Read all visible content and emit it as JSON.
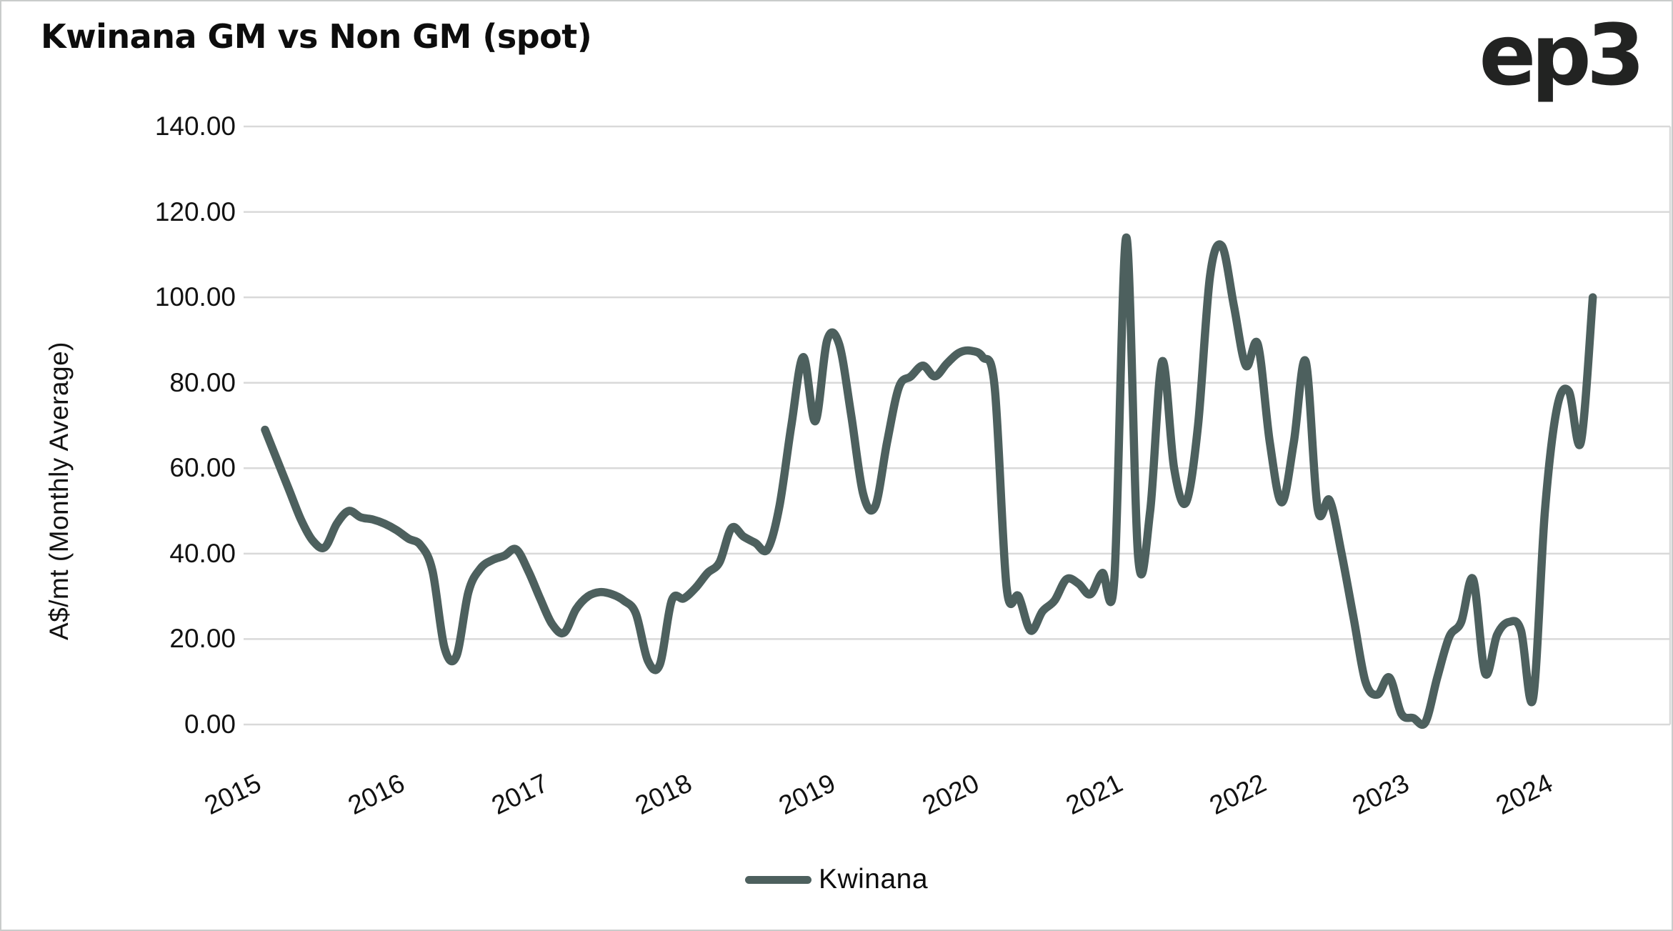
{
  "header": {
    "title": "Kwinana GM vs Non GM (spot)",
    "logo": "ep3"
  },
  "legend": {
    "label": "Kwinana",
    "swatch_color": "#4d605e"
  },
  "colors": {
    "line": "#4d605e",
    "grid": "#d9d9d9",
    "text": "#121212",
    "background": "#ffffff",
    "border": "#c9cccb"
  },
  "chart_data": {
    "type": "line",
    "title": "Kwinana GM vs Non GM (spot)",
    "xlabel": "",
    "ylabel": "A$/mt (Monthly Average)",
    "ylim": [
      0,
      140
    ],
    "grid": "horizontal-only",
    "legend_position": "bottom-center",
    "y_ticks": [
      "140.00",
      "120.00",
      "100.00",
      "80.00",
      "60.00",
      "40.00",
      "20.00",
      "0.00"
    ],
    "y_tick_values": [
      140,
      120,
      100,
      80,
      60,
      40,
      20,
      0
    ],
    "x_ticks": [
      "2015",
      "2016",
      "2017",
      "2018",
      "2019",
      "2020",
      "2021",
      "2022",
      "2023",
      "2024"
    ],
    "x_start": "2015-01",
    "x_step_months": 1,
    "x_end": "2024-04",
    "series": [
      {
        "name": "Kwinana",
        "color": "#4d605e",
        "values": [
          69,
          62,
          55,
          48,
          43,
          41.5,
          47,
          50,
          48.5,
          48,
          47,
          45.5,
          43.5,
          42,
          36,
          18,
          16,
          31,
          36.5,
          38.5,
          39.5,
          41,
          36,
          29.5,
          23.5,
          21.5,
          27,
          30,
          31,
          30.5,
          29,
          26,
          15,
          14,
          29,
          29.5,
          32,
          35.5,
          38,
          46,
          44,
          42.5,
          41,
          51,
          70,
          86,
          71,
          90,
          89,
          72.5,
          54,
          51,
          66,
          79,
          81.5,
          84,
          81.5,
          84.5,
          87,
          87.5,
          86,
          79,
          32,
          30,
          22,
          26.5,
          29,
          34,
          33,
          30.5,
          35.5,
          34,
          114,
          39,
          50,
          85,
          60,
          52,
          70,
          105,
          112,
          98,
          84,
          89,
          66,
          52,
          66,
          85,
          50.5,
          52.5,
          40,
          25,
          10,
          7,
          11,
          2.5,
          1.5,
          0.5,
          11,
          20.5,
          24,
          34,
          12,
          21,
          24,
          22,
          6,
          50,
          74,
          78,
          66,
          100
        ]
      }
    ]
  }
}
